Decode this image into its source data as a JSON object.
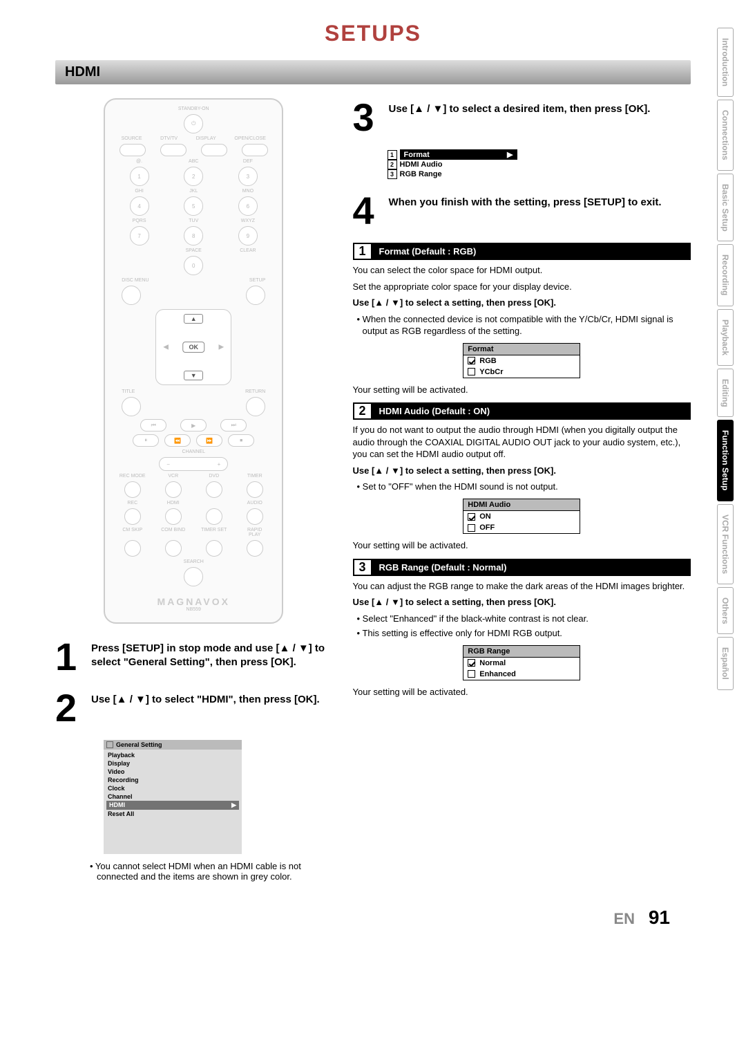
{
  "page_title": "SETUPS",
  "section": "HDMI",
  "remote": {
    "brand": "MAGNAVOX",
    "model": "NB559",
    "top_labels": [
      "SOURCE",
      "DTV/TV",
      "DISPLAY",
      "OPEN/CLOSE"
    ],
    "standby_label": "STANDBY-ON",
    "num_rows": [
      {
        "labels": [
          "@.",
          "ABC",
          "DEF"
        ],
        "keys": [
          "1",
          "2",
          "3"
        ]
      },
      {
        "labels": [
          "GHI",
          "JKL",
          "MNO"
        ],
        "keys": [
          "4",
          "5",
          "6"
        ]
      },
      {
        "labels": [
          "PQRS",
          "TUV",
          "WXYZ"
        ],
        "keys": [
          "7",
          "8",
          "9"
        ]
      },
      {
        "labels": [
          "",
          "SPACE",
          "CLEAR"
        ],
        "keys": [
          "",
          "0",
          ""
        ]
      }
    ],
    "disc_menu": "DISC MENU",
    "setup": "SETUP",
    "title": "TITLE",
    "return": "RETURN",
    "ok": "OK",
    "channel": "CHANNEL",
    "row_a": [
      "REC MODE",
      "VCR",
      "DVD",
      "TIMER"
    ],
    "row_b": [
      "REC",
      "HDMI",
      "",
      "AUDIO"
    ],
    "row_c": [
      "CM SKIP",
      "COM BIND",
      "TIMER SET",
      "RAPID PLAY"
    ],
    "search": "SEARCH"
  },
  "steps": {
    "s1": "Press [SETUP] in stop mode and use [▲ / ▼] to select \"General Setting\", then press [OK].",
    "s2": "Use [▲ / ▼] to select \"HDMI\", then press [OK].",
    "s3": "Use [▲ / ▼] to select a desired item, then press [OK].",
    "s4": "When you finish with the setting, press [SETUP] to exit."
  },
  "general_setting_menu": {
    "title": "General Setting",
    "items": [
      "Playback",
      "Display",
      "Video",
      "Recording",
      "Clock",
      "Channel",
      "HDMI",
      "Reset All"
    ],
    "selected": "HDMI"
  },
  "note_left": "• You cannot select HDMI when an HDMI cable is not connected and the items are shown in grey color.",
  "step3_menu": {
    "items": [
      "Format",
      "HDMI Audio",
      "RGB Range"
    ],
    "selected": 0
  },
  "sub1": {
    "title": "Format (Default : RGB)",
    "desc1": "You can select the color space for HDMI output.",
    "desc2": "Set the appropriate color space for your display device.",
    "instr": "Use [▲ / ▼] to select a setting, then press [OK].",
    "bullet1": "When the connected device is not compatible with the Y/Cb/Cr, HDMI signal is output as RGB regardless of the setting.",
    "table_title": "Format",
    "options": [
      "RGB",
      "YCbCr"
    ],
    "selected": 0,
    "after": "Your setting will be activated."
  },
  "sub2": {
    "title": "HDMI Audio (Default : ON)",
    "desc": "If you do not want to output the audio through HDMI (when you digitally output the audio through the COAXIAL DIGITAL AUDIO OUT jack to your audio system, etc.), you can set the HDMI audio output off.",
    "instr": "Use [▲ / ▼] to select a setting, then press [OK].",
    "bullet1": "Set to \"OFF\" when the HDMI sound is not output.",
    "table_title": "HDMI Audio",
    "options": [
      "ON",
      "OFF"
    ],
    "selected": 0,
    "after": "Your setting will be activated."
  },
  "sub3": {
    "title": "RGB Range (Default : Normal)",
    "desc": "You can adjust the RGB range to make the dark areas of the HDMI images brighter.",
    "instr": "Use [▲ / ▼] to select a setting, then press [OK].",
    "bullet1": "Select \"Enhanced\" if the black-white contrast is not clear.",
    "bullet2": "This setting is effective only for HDMI RGB output.",
    "table_title": "RGB Range",
    "options": [
      "Normal",
      "Enhanced"
    ],
    "selected": 0,
    "after": "Your setting will be activated."
  },
  "tabs": [
    "Introduction",
    "Connections",
    "Basic Setup",
    "Recording",
    "Playback",
    "Editing",
    "Function Setup",
    "VCR Functions",
    "Others",
    "Español"
  ],
  "active_tab": "Function Setup",
  "footer": {
    "lang": "EN",
    "page": "91"
  }
}
